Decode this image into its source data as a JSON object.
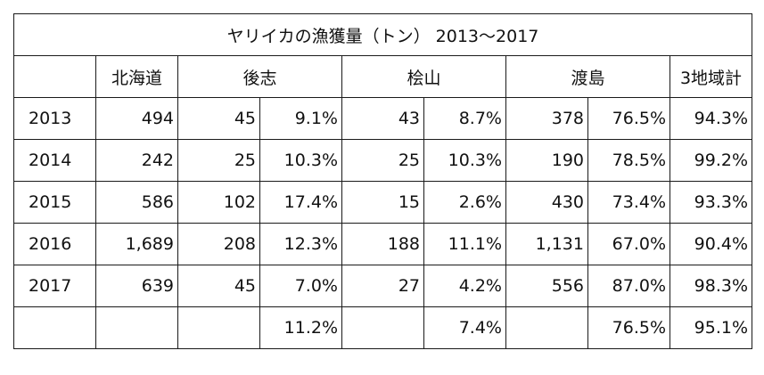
{
  "title": "ヤリイカの漁獲量（トン） 2013～2017",
  "headers": [
    "",
    "北海道",
    "後志",
    "桧山",
    "渡島",
    "3地域計"
  ],
  "rows": [
    {
      "year": "2013",
      "hokkaido": "494",
      "shiribeshi": "45",
      "shiribeshi_pct": "9.1%",
      "hiyama": "43",
      "hiyama_pct": "8.7%",
      "oshima": "378",
      "oshima_pct": "76.5%",
      "total_pct": "94.3%"
    },
    {
      "year": "2014",
      "hokkaido": "242",
      "shiribeshi": "25",
      "shiribeshi_pct": "10.3%",
      "hiyama": "25",
      "hiyama_pct": "10.3%",
      "oshima": "190",
      "oshima_pct": "78.5%",
      "total_pct": "99.2%"
    },
    {
      "year": "2015",
      "hokkaido": "586",
      "shiribeshi": "102",
      "shiribeshi_pct": "17.4%",
      "hiyama": "15",
      "hiyama_pct": "2.6%",
      "oshima": "430",
      "oshima_pct": "73.4%",
      "total_pct": "93.3%"
    },
    {
      "year": "2016",
      "hokkaido": "1,689",
      "shiribeshi": "208",
      "shiribeshi_pct": "12.3%",
      "hiyama": "188",
      "hiyama_pct": "11.1%",
      "oshima": "1,131",
      "oshima_pct": "67.0%",
      "total_pct": "90.4%"
    },
    {
      "year": "2017",
      "hokkaido": "639",
      "shiribeshi": "45",
      "shiribeshi_pct": "7.0%",
      "hiyama": "27",
      "hiyama_pct": "4.2%",
      "oshima": "556",
      "oshima_pct": "87.0%",
      "total_pct": "98.3%"
    }
  ],
  "average": {
    "shiribeshi_pct": "11.2%",
    "hiyama_pct": "7.4%",
    "oshima_pct": "76.5%",
    "total_pct": "95.1%"
  }
}
